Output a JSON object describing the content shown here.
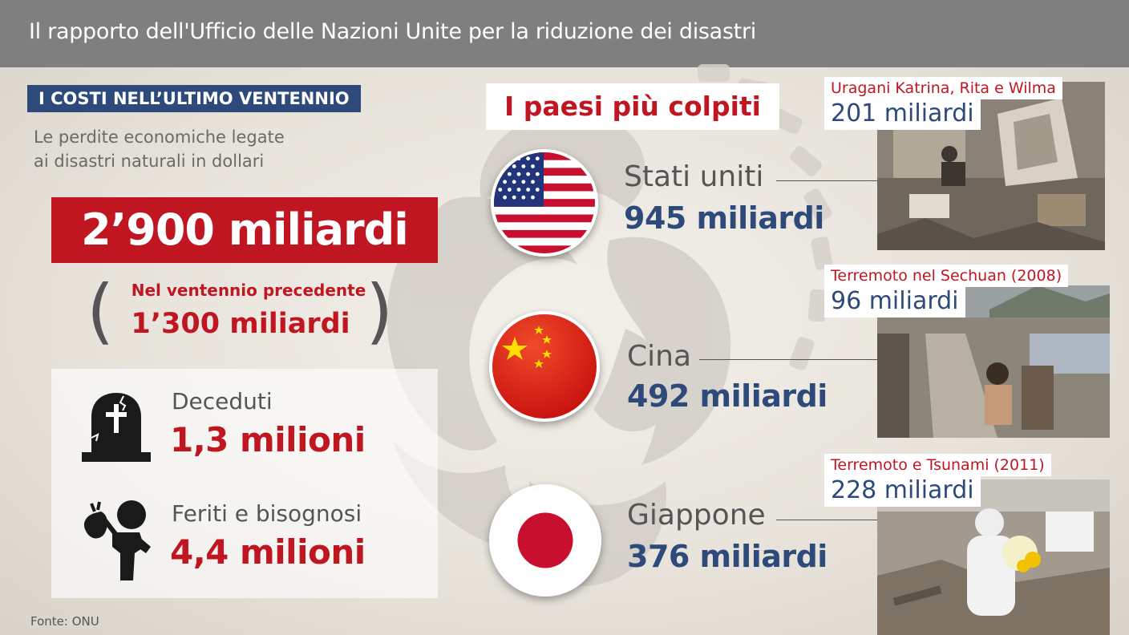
{
  "header": {
    "title": "Il rapporto dell'Ufficio delle Nazioni Unite per la riduzione dei disastri"
  },
  "left": {
    "section_label": "I COSTI NELL’ULTIMO VENTENNIO",
    "subtitle_line1": "Le perdite economiche legate",
    "subtitle_line2": "ai disastri naturali in dollari",
    "total": "2’900 miliardi",
    "previous_label": "Nel ventennio precedente",
    "previous_value": "1’300 miliardi",
    "stats": [
      {
        "label": "Deceduti",
        "value": "1,3 milioni",
        "icon": "tombstone-icon"
      },
      {
        "label": "Feriti e bisognosi",
        "value": "4,4 milioni",
        "icon": "wounded-person-icon"
      }
    ],
    "source": "Fonte: ONU"
  },
  "countries": {
    "title": "I paesi più colpiti",
    "items": [
      {
        "name": "Stati uniti",
        "value": "945 miliardi",
        "flag": "usa-flag-icon"
      },
      {
        "name": "Cina",
        "value": "492 miliardi",
        "flag": "china-flag-icon"
      },
      {
        "name": "Giappone",
        "value": "376 miliardi",
        "flag": "japan-flag-icon"
      }
    ]
  },
  "events": [
    {
      "label": "Uragani Katrina, Rita e Wilma",
      "value": "201 miliardi"
    },
    {
      "label": "Terremoto nel Sechuan (2008)",
      "value": "96 miliardi"
    },
    {
      "label": "Terremoto e Tsunami (2011)",
      "value": "228 miliardi"
    }
  ],
  "colors": {
    "accent_red": "#c01622",
    "accent_blue": "#2e4a7a",
    "header_gray": "#7f7f7f",
    "text_gray": "#555555"
  }
}
